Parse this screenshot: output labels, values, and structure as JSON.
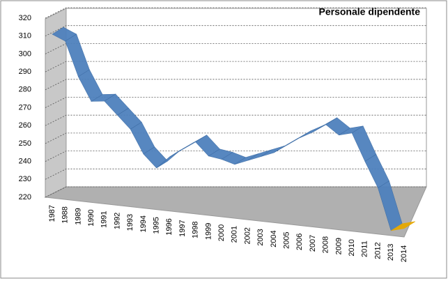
{
  "chart_data": {
    "type": "line",
    "title": "Personale dipendente",
    "categories": [
      "1987",
      "1988",
      "1989",
      "1990",
      "1991",
      "1992",
      "1993",
      "1994",
      "1995",
      "1996",
      "1997",
      "1998",
      "1999",
      "2000",
      "2001",
      "2002",
      "2003",
      "2004",
      "2005",
      "2006",
      "2007",
      "2008",
      "2009",
      "2010",
      "2011",
      "2012",
      "2013",
      "2014"
    ],
    "series": [
      {
        "name": "Personale dipendente",
        "color": "#4f81bd",
        "values": [
          311,
          308,
          289,
          276,
          277,
          270,
          263,
          250,
          243,
          250,
          255,
          260,
          253,
          252,
          250,
          253,
          256,
          259,
          264,
          269,
          273,
          278,
          273,
          275,
          260,
          246,
          223,
          225
        ]
      }
    ],
    "last_color": "#e6a800",
    "ylim": [
      220,
      320
    ],
    "yticks": [
      220,
      230,
      240,
      250,
      260,
      270,
      280,
      290,
      300,
      310,
      320
    ],
    "grid": true
  }
}
